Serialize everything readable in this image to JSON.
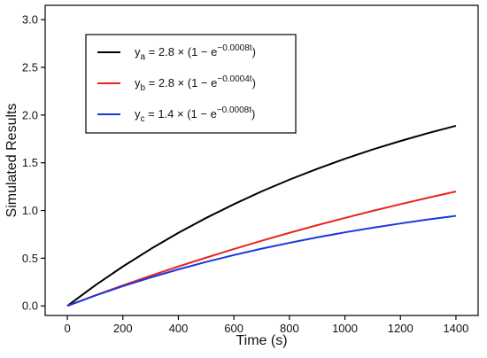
{
  "chart_data": {
    "type": "line",
    "title": "",
    "xlabel": "Time (s)",
    "ylabel": "Simulated Results",
    "xlim": [
      -80,
      1480
    ],
    "ylim": [
      -0.1,
      3.15
    ],
    "xticks": [
      0,
      200,
      400,
      600,
      800,
      1000,
      1200,
      1400
    ],
    "yticks": [
      0.0,
      0.5,
      1.0,
      1.5,
      2.0,
      2.5,
      3.0
    ],
    "ytick_labels": [
      "0.0",
      "0.5",
      "1.0",
      "1.5",
      "2.0",
      "2.5",
      "3.0"
    ],
    "grid": false,
    "legend_position": "top-left",
    "x": [
      0,
      100,
      200,
      300,
      400,
      500,
      600,
      700,
      800,
      900,
      1000,
      1100,
      1200,
      1300,
      1400
    ],
    "series": [
      {
        "key": "a",
        "color": "#000000",
        "legend": {
          "prefix": "y",
          "sub": "a",
          "mid": " = 2.8 × (1 − e",
          "sup": "−0.0008t",
          "suffix": ")"
        },
        "values": [
          0.0,
          0.215,
          0.413,
          0.596,
          0.766,
          0.922,
          1.066,
          1.2,
          1.323,
          1.436,
          1.542,
          1.639,
          1.728,
          1.811,
          1.888
        ]
      },
      {
        "key": "b",
        "color": "#e8251c",
        "legend": {
          "prefix": "y",
          "sub": "b",
          "mid": " = 2.8 × (1 − e",
          "sup": "−0.0004t",
          "suffix": ")"
        },
        "values": [
          0.0,
          0.11,
          0.215,
          0.316,
          0.413,
          0.506,
          0.596,
          0.683,
          0.766,
          0.846,
          0.922,
          0.996,
          1.066,
          1.134,
          1.199
        ]
      },
      {
        "key": "c",
        "color": "#1a36e0",
        "legend": {
          "prefix": "y",
          "sub": "c",
          "mid": " = 1.4 × (1 − e",
          "sup": "−0.0008t",
          "suffix": ")"
        },
        "values": [
          0.0,
          0.108,
          0.207,
          0.298,
          0.383,
          0.461,
          0.533,
          0.6,
          0.661,
          0.718,
          0.771,
          0.819,
          0.864,
          0.906,
          0.944
        ]
      }
    ]
  }
}
